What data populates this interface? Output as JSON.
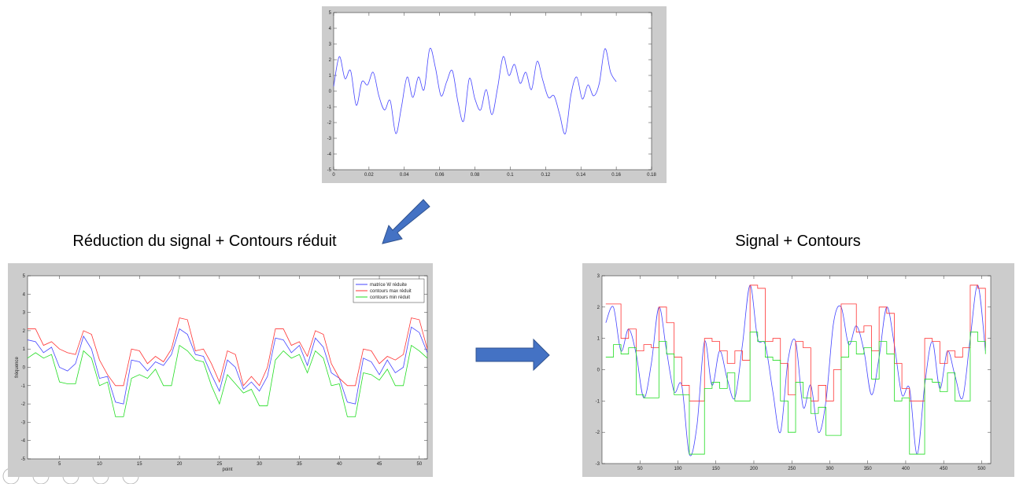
{
  "chart_data": [
    {
      "type": "line",
      "xlim": [
        0,
        0.18
      ],
      "xticks": [
        0,
        0.02,
        0.04,
        0.06,
        0.08,
        0.1,
        0.12,
        0.14,
        0.16,
        0.18
      ],
      "ylim": [
        -5,
        5
      ],
      "yticks": [
        -5,
        -4,
        -3,
        -2,
        -1,
        0,
        1,
        2,
        3,
        4,
        5
      ],
      "x": [
        0,
        0.0032,
        0.0064,
        0.0096,
        0.0128,
        0.016,
        0.0192,
        0.0224,
        0.0256,
        0.0288,
        0.032,
        0.0352,
        0.0384,
        0.0416,
        0.0448,
        0.048,
        0.0512,
        0.0544,
        0.0576,
        0.0608,
        0.064,
        0.0672,
        0.0704,
        0.0736,
        0.0768,
        0.08,
        0.0832,
        0.0864,
        0.0896,
        0.0928,
        0.096,
        0.0992,
        0.1024,
        0.1056,
        0.1088,
        0.112,
        0.1152,
        0.1184,
        0.1216,
        0.1248,
        0.128,
        0.1312,
        0.1344,
        0.1376,
        0.1408,
        0.144,
        0.1472,
        0.1504,
        0.1536,
        0.1568,
        0.16
      ],
      "series": [
        {
          "color": "#4444ff",
          "smooth": true,
          "values": [
            0.3,
            2.2,
            0.8,
            1.3,
            -0.9,
            0.6,
            0.4,
            1.2,
            -0.3,
            -1.2,
            -0.6,
            -2.7,
            -1.0,
            0.9,
            -0.4,
            0.9,
            0.1,
            2.7,
            1.5,
            -0.3,
            0.6,
            1.3,
            -0.7,
            -1.9,
            0.8,
            -0.5,
            -1.2,
            0.1,
            -1.5,
            0.2,
            2.2,
            1.0,
            1.7,
            0.5,
            1.2,
            0.1,
            1.9,
            0.7,
            -0.4,
            -0.3,
            -1.5,
            -2.7,
            -0.2,
            0.9,
            -0.5,
            0.4,
            -0.3,
            0.5,
            2.7,
            1.2,
            0.6
          ]
        }
      ]
    },
    {
      "type": "line",
      "title": "Réduction du signal + Contours réduit",
      "xlabel": "point",
      "ylabel": "fréquence",
      "xlim": [
        1,
        51
      ],
      "xticks": [
        5,
        10,
        15,
        20,
        25,
        30,
        35,
        40,
        45,
        50
      ],
      "ylim": [
        -5,
        5
      ],
      "yticks": [
        -5,
        -4,
        -3,
        -2,
        -1,
        0,
        1,
        2,
        3,
        4,
        5
      ],
      "legend": "upper right",
      "x": [
        1,
        2,
        3,
        4,
        5,
        6,
        7,
        8,
        9,
        10,
        11,
        12,
        13,
        14,
        15,
        16,
        17,
        18,
        19,
        20,
        21,
        22,
        23,
        24,
        25,
        26,
        27,
        28,
        29,
        30,
        31,
        32,
        33,
        34,
        35,
        36,
        37,
        38,
        39,
        40,
        41,
        42,
        43,
        44,
        45,
        46,
        47,
        48,
        49,
        50,
        51
      ],
      "series": [
        {
          "name": "matrice W réduite",
          "color": "#4444ff",
          "values": [
            1.5,
            1.4,
            0.8,
            1.1,
            0,
            -0.2,
            0.2,
            1.7,
            1.0,
            -0.6,
            -0.5,
            -1.9,
            -2.0,
            0.4,
            0.3,
            -0.2,
            0.3,
            0.1,
            0.7,
            2.1,
            1.8,
            0.7,
            0.6,
            -0.4,
            -1.3,
            0.4,
            0,
            -1.2,
            -0.8,
            -1.3,
            -0.5,
            1.6,
            1.5,
            0.8,
            1.2,
            0.1,
            1.6,
            1.1,
            -0.3,
            -0.6,
            -1.9,
            -2.0,
            0.5,
            0.3,
            -0.4,
            0.4,
            -0.3,
            0,
            2.2,
            1.9,
            0.8
          ]
        },
        {
          "name": "contours max réduit",
          "color": "#ff3333",
          "values": [
            2.1,
            2.1,
            1.2,
            1.4,
            1.0,
            0.8,
            0.7,
            2.0,
            1.8,
            0.4,
            -0.4,
            -1.0,
            -1.0,
            1.0,
            0.9,
            0.2,
            0.6,
            0.3,
            1.0,
            2.7,
            2.6,
            0.9,
            1.0,
            0.2,
            -0.8,
            0.9,
            0.7,
            -1.0,
            -0.5,
            -1.0,
            0.0,
            2.1,
            2.1,
            1.2,
            1.4,
            0.6,
            2.0,
            1.8,
            0.2,
            -0.6,
            -1.0,
            -1.0,
            1.0,
            0.9,
            0.2,
            0.6,
            0.4,
            0.7,
            2.7,
            2.6,
            1.0
          ]
        },
        {
          "name": "contours min réduit",
          "color": "#22dd22",
          "values": [
            0.5,
            0.8,
            0.5,
            0.7,
            -0.8,
            -0.9,
            -0.9,
            0.9,
            0.5,
            -1.0,
            -0.8,
            -2.7,
            -2.7,
            -0.6,
            -0.4,
            -0.6,
            -0.1,
            -1.0,
            -1.0,
            1.2,
            0.9,
            0.4,
            0.3,
            -1.0,
            -2.0,
            -0.4,
            -0.9,
            -1.4,
            -1.2,
            -2.1,
            -2.1,
            0.4,
            0.9,
            0.5,
            0.7,
            -0.3,
            0.9,
            0.5,
            -1.0,
            -0.9,
            -2.7,
            -2.7,
            -0.3,
            -0.4,
            -0.7,
            -0.1,
            -1.0,
            -1.0,
            1.2,
            0.9,
            0.5
          ]
        }
      ]
    },
    {
      "type": "line",
      "title": "Signal + Contours",
      "xlim": [
        0,
        512
      ],
      "xticks": [
        50,
        100,
        150,
        200,
        250,
        300,
        350,
        400,
        450,
        500
      ],
      "ylim": [
        -3,
        3
      ],
      "yticks": [
        -3,
        -2,
        -1,
        0,
        1,
        2,
        3
      ],
      "x": [
        5,
        15,
        25,
        35,
        45,
        55,
        65,
        75,
        85,
        95,
        105,
        115,
        125,
        135,
        145,
        155,
        165,
        175,
        185,
        195,
        205,
        215,
        225,
        235,
        245,
        255,
        265,
        275,
        285,
        295,
        305,
        315,
        325,
        335,
        345,
        355,
        365,
        375,
        385,
        395,
        405,
        415,
        425,
        435,
        445,
        455,
        465,
        475,
        485,
        495,
        505
      ],
      "series": [
        {
          "color": "#4444ff",
          "smooth": true,
          "values": [
            1.5,
            2.0,
            0.6,
            1.3,
            0.5,
            -0.9,
            0.2,
            2.0,
            0.6,
            -0.7,
            -0.5,
            -2.7,
            -1.8,
            0.9,
            -0.5,
            0.6,
            -0.3,
            -0.9,
            0.8,
            2.7,
            1.0,
            0.8,
            -0.7,
            -2.0,
            0.3,
            0.9,
            -1.2,
            -0.5,
            -2.0,
            -1.0,
            1.5,
            2.0,
            0.8,
            1.4,
            0.6,
            -0.8,
            0.4,
            2.0,
            0.8,
            -0.8,
            -0.6,
            -2.7,
            -0.5,
            0.9,
            -0.6,
            0.6,
            -0.2,
            -0.9,
            1.0,
            2.7,
            0.6
          ]
        },
        {
          "color": "#ff3333",
          "step": true,
          "values": [
            2.1,
            2.1,
            1.0,
            1.3,
            0.6,
            0.8,
            0.7,
            2.0,
            1.5,
            0.4,
            -0.5,
            -1.0,
            -1.0,
            1.0,
            0.9,
            0.6,
            0.2,
            0.6,
            0.3,
            2.7,
            2.6,
            0.9,
            1.0,
            0.2,
            -0.8,
            0.9,
            0.7,
            -1.0,
            -0.5,
            -1.0,
            0.0,
            2.1,
            2.1,
            1.2,
            1.4,
            0.6,
            2.0,
            1.8,
            0.2,
            -0.6,
            -1.0,
            -1.0,
            1.0,
            0.9,
            0.2,
            0.6,
            0.4,
            0.7,
            2.7,
            2.6,
            0.7
          ]
        },
        {
          "color": "#22dd22",
          "step": true,
          "values": [
            0.4,
            0.8,
            0.5,
            0.7,
            -0.8,
            -0.9,
            -0.9,
            0.9,
            0.5,
            -0.8,
            -0.8,
            -2.7,
            -2.7,
            -0.6,
            -0.4,
            -0.6,
            -0.1,
            -1.0,
            -1.0,
            1.2,
            0.9,
            0.4,
            0.3,
            -1.0,
            -2.0,
            -0.4,
            -0.9,
            -1.4,
            -1.2,
            -2.1,
            -2.1,
            0.4,
            0.9,
            0.5,
            0.7,
            -0.3,
            0.9,
            0.5,
            -1.0,
            -0.9,
            -2.7,
            -2.7,
            -0.3,
            -0.4,
            -0.7,
            -0.1,
            -1.0,
            -1.0,
            1.2,
            0.9,
            0.5
          ]
        }
      ]
    }
  ]
}
